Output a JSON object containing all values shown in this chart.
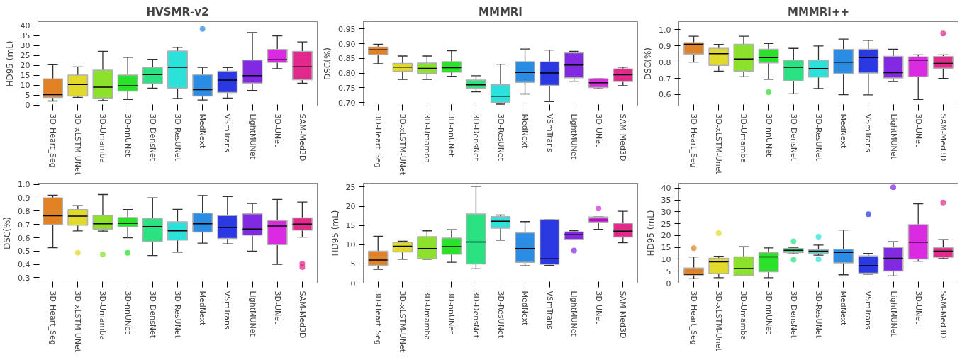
{
  "chart_data": [
    {
      "type": "box",
      "title": "HVSMR-v2",
      "ylabel": "HD95 (mL)",
      "categories": [
        "3D-Heart_Seg",
        "3D-xLSTM-UNet",
        "3D-Umamba",
        "3D-nnUNet",
        "3D-DensNet",
        "3D-ResUNet",
        "MedNext",
        "VSmTrans",
        "LightMUNet",
        "3D-UNet",
        "SAM-Med3D"
      ],
      "colors": [
        "#e07b1a",
        "#e0d81f",
        "#86e01f",
        "#1ee01e",
        "#1fe07b",
        "#1fe0d8",
        "#1f86e0",
        "#1f2ee0",
        "#7b1fe0",
        "#d81fe0",
        "#e01f86"
      ],
      "ylim": [
        -0.5,
        42
      ],
      "yticks": [
        0,
        5,
        10,
        15,
        20,
        25,
        30,
        35,
        40
      ],
      "grid": false,
      "boxes": [
        {
          "low": 2,
          "q1": 3.8,
          "median": 5.2,
          "q3": 13.2,
          "high": 20.3
        },
        {
          "low": 3.8,
          "q1": 4.5,
          "median": 10.3,
          "q3": 15,
          "high": 19.2
        },
        {
          "low": 2.2,
          "q1": 3.5,
          "median": 9,
          "q3": 17.5,
          "high": 27
        },
        {
          "low": 2.8,
          "q1": 7,
          "median": 9.7,
          "q3": 15,
          "high": 24
        },
        {
          "low": 8.5,
          "q1": 10.8,
          "median": 15.3,
          "q3": 18.8,
          "high": 23
        },
        {
          "low": 3.3,
          "q1": 8.5,
          "median": 19,
          "q3": 27.2,
          "high": 29
        },
        {
          "low": 2.5,
          "q1": 4.5,
          "median": 7.7,
          "q3": 15.2,
          "high": 18.9,
          "outliers": [
            38.3
          ]
        },
        {
          "low": 3.5,
          "q1": 6.3,
          "median": 12.5,
          "q3": 17,
          "high": 18.8
        },
        {
          "low": 7.3,
          "q1": 11,
          "median": 14.8,
          "q3": 22.6,
          "high": 36.5
        },
        {
          "low": 18.3,
          "q1": 21.5,
          "median": 22.8,
          "q3": 28,
          "high": 34.8
        },
        {
          "low": 11,
          "q1": 12.7,
          "median": 19.2,
          "q3": 27,
          "high": 31.8
        }
      ]
    },
    {
      "type": "box",
      "title": "MMMRI",
      "ylabel": "DSC(%)",
      "categories": [
        "3D-Heart_Seg",
        "3D-xLSTM-UNet",
        "3D-Umamba",
        "3D-nnUNet",
        "3D-DensNet",
        "3D-ResUNet",
        "MedNext",
        "VSmTrans",
        "LightMUNet",
        "3D-UNet",
        "SAM-Med3D"
      ],
      "colors": [
        "#e07b1a",
        "#e0d81f",
        "#86e01f",
        "#1ee01e",
        "#1fe07b",
        "#1fe0d8",
        "#1f86e0",
        "#1f2ee0",
        "#7b1fe0",
        "#d81fe0",
        "#e01f86"
      ],
      "ylim": [
        0.688,
        0.975
      ],
      "yticks": [
        {
          "value": 0.7,
          "label": "0.70"
        },
        {
          "value": 0.75,
          "label": "0.75"
        },
        {
          "value": 0.8,
          "label": "0.80"
        },
        {
          "value": 0.85,
          "label": "0.85"
        },
        {
          "value": 0.9,
          "label": "0.90"
        },
        {
          "value": 0.95,
          "label": "0.95"
        }
      ],
      "grid": false,
      "boxes": [
        {
          "low": 0.832,
          "q1": 0.863,
          "median": 0.879,
          "q3": 0.888,
          "high": 0.898
        },
        {
          "low": 0.778,
          "q1": 0.806,
          "median": 0.82,
          "q3": 0.833,
          "high": 0.858
        },
        {
          "low": 0.778,
          "q1": 0.799,
          "median": 0.816,
          "q3": 0.834,
          "high": 0.858
        },
        {
          "low": 0.789,
          "q1": 0.803,
          "median": 0.818,
          "q3": 0.839,
          "high": 0.876
        },
        {
          "low": 0.736,
          "q1": 0.748,
          "median": 0.76,
          "q3": 0.776,
          "high": 0.791
        },
        {
          "low": 0.694,
          "q1": 0.7,
          "median": 0.721,
          "q3": 0.76,
          "high": 0.83
        },
        {
          "low": 0.729,
          "q1": 0.768,
          "median": 0.802,
          "q3": 0.839,
          "high": 0.882
        },
        {
          "low": 0.703,
          "q1": 0.758,
          "median": 0.8,
          "q3": 0.838,
          "high": 0.878
        },
        {
          "low": 0.772,
          "q1": 0.784,
          "median": 0.827,
          "q3": 0.869,
          "high": 0.874
        },
        {
          "low": 0.747,
          "q1": 0.751,
          "median": 0.767,
          "q3": 0.781,
          "high": 0.781
        },
        {
          "low": 0.757,
          "q1": 0.771,
          "median": 0.794,
          "q3": 0.814,
          "high": 0.82
        }
      ]
    },
    {
      "type": "box",
      "title": "MMMRI++",
      "ylabel": "DSC(%)",
      "categories": [
        "3D-Heart_Seg",
        "3D-xLSTM-Unet",
        "3D-Umamba",
        "3D-nnUNet",
        "3D-DensNet",
        "3D-ResUNet",
        "MedNext",
        "VSmTrans",
        "LightMUNet",
        "3D-UNet",
        "SAM-Med3D"
      ],
      "colors": [
        "#e07b1a",
        "#e0d81f",
        "#86e01f",
        "#1ee01e",
        "#1fe07b",
        "#1fe0d8",
        "#1f86e0",
        "#1f2ee0",
        "#7b1fe0",
        "#d81fe0",
        "#e01f86"
      ],
      "ylim": [
        0.53,
        1.05
      ],
      "yticks": [
        0.6,
        0.7,
        0.8,
        0.9,
        {
          "value": 1,
          "label": "1.0"
        }
      ],
      "grid": false,
      "boxes": [
        {
          "low": 0.8,
          "q1": 0.85,
          "median": 0.91,
          "q3": 0.92,
          "high": 0.96
        },
        {
          "low": 0.745,
          "q1": 0.78,
          "median": 0.852,
          "q3": 0.885,
          "high": 0.91
        },
        {
          "low": 0.71,
          "q1": 0.745,
          "median": 0.82,
          "q3": 0.91,
          "high": 0.96
        },
        {
          "low": 0.695,
          "q1": 0.795,
          "median": 0.828,
          "q3": 0.88,
          "high": 0.915,
          "outliers": [
            0.615
          ]
        },
        {
          "low": 0.605,
          "q1": 0.685,
          "median": 0.768,
          "q3": 0.812,
          "high": 0.885
        },
        {
          "low": 0.638,
          "q1": 0.708,
          "median": 0.76,
          "q3": 0.812,
          "high": 0.9
        },
        {
          "low": 0.6,
          "q1": 0.73,
          "median": 0.8,
          "q3": 0.878,
          "high": 0.942
        },
        {
          "low": 0.598,
          "q1": 0.733,
          "median": 0.828,
          "q3": 0.88,
          "high": 0.935
        },
        {
          "low": 0.68,
          "q1": 0.703,
          "median": 0.735,
          "q3": 0.836,
          "high": 0.88
        },
        {
          "low": 0.57,
          "q1": 0.71,
          "median": 0.813,
          "q3": 0.833,
          "high": 0.845
        },
        {
          "low": 0.7,
          "q1": 0.763,
          "median": 0.792,
          "q3": 0.835,
          "high": 0.845,
          "outliers": [
            0.977
          ]
        }
      ]
    },
    {
      "type": "box",
      "ylabel": "DSC(%)",
      "categories": [
        "3D-Heart_Seg",
        "3D-xLSTM-UNet",
        "3D-Umamba",
        "3D-nnUNet",
        "3D-DensNet",
        "3D-ResUNet",
        "MedNext",
        "VSmTrans",
        "LightMUNet",
        "3D-UNet",
        "SAM-Med3D"
      ],
      "colors": [
        "#e07b1a",
        "#e0d81f",
        "#86e01f",
        "#1ee01e",
        "#1fe07b",
        "#1fe0d8",
        "#1f86e0",
        "#1f2ee0",
        "#7b1fe0",
        "#d81fe0",
        "#e01f86"
      ],
      "ylim": [
        0.26,
        1.01
      ],
      "yticks": [
        0.3,
        0.4,
        0.5,
        0.6,
        0.7,
        0.8,
        0.9,
        {
          "value": 1,
          "label": "1.0"
        }
      ],
      "grid": false,
      "boxes": [
        {
          "low": 0.525,
          "q1": 0.7,
          "median": 0.765,
          "q3": 0.9,
          "high": 0.92
        },
        {
          "low": 0.652,
          "q1": 0.695,
          "median": 0.762,
          "q3": 0.812,
          "high": 0.842,
          "outliers": [
            0.487
          ]
        },
        {
          "low": 0.65,
          "q1": 0.665,
          "median": 0.705,
          "q3": 0.768,
          "high": 0.925,
          "outliers": [
            0.475
          ]
        },
        {
          "low": 0.6,
          "q1": 0.683,
          "median": 0.71,
          "q3": 0.752,
          "high": 0.812,
          "outliers": [
            0.487
          ]
        },
        {
          "low": 0.467,
          "q1": 0.573,
          "median": 0.684,
          "q3": 0.745,
          "high": 0.9
        },
        {
          "low": 0.492,
          "q1": 0.583,
          "median": 0.652,
          "q3": 0.72,
          "high": 0.814
        },
        {
          "low": 0.56,
          "q1": 0.643,
          "median": 0.705,
          "q3": 0.785,
          "high": 0.918
        },
        {
          "low": 0.555,
          "q1": 0.595,
          "median": 0.678,
          "q3": 0.767,
          "high": 0.91
        },
        {
          "low": 0.5,
          "q1": 0.62,
          "median": 0.666,
          "q3": 0.78,
          "high": 0.858
        },
        {
          "low": 0.4,
          "q1": 0.548,
          "median": 0.688,
          "q3": 0.73,
          "high": 0.888
        },
        {
          "low": 0.605,
          "q1": 0.658,
          "median": 0.703,
          "q3": 0.75,
          "high": 0.868,
          "outliers": [
            0.38,
            0.405
          ]
        }
      ]
    },
    {
      "type": "box",
      "ylabel": "HD95 (mL)",
      "categories": [
        "3D-Heart_Seg",
        "3D-xLSTM-UNet",
        "3D-Umamba",
        "3D-nnUNet",
        "3D-DensNet",
        "3D-ResUNet",
        "MedNext",
        "VSmTrans",
        "LightMUNet",
        "3D-UNet",
        "SAM-Med3D"
      ],
      "colors": [
        "#e07b1a",
        "#e0d81f",
        "#86e01f",
        "#1ee01e",
        "#1fe07b",
        "#1fe0d8",
        "#1f86e0",
        "#1f2ee0",
        "#7b1fe0",
        "#d81fe0",
        "#e01f86"
      ],
      "ylim": [
        0,
        26
      ],
      "yticks": [
        0,
        5,
        10,
        15,
        20,
        25
      ],
      "grid": false,
      "boxes": [
        {
          "low": 3.6,
          "q1": 4.6,
          "median": 6,
          "q3": 8.3,
          "high": 12.2
        },
        {
          "low": 6.2,
          "q1": 8.1,
          "median": 9.6,
          "q3": 10.6,
          "high": 10.9
        },
        {
          "low": 6.2,
          "q1": 6.3,
          "median": 9,
          "q3": 12.1,
          "high": 13.6
        },
        {
          "low": 5.4,
          "q1": 7.5,
          "median": 9.5,
          "q3": 11.7,
          "high": 13.9
        },
        {
          "low": 3.7,
          "q1": 5,
          "median": 10.7,
          "q3": 18,
          "high": 25.2
        },
        {
          "low": 11.2,
          "q1": 14.3,
          "median": 16.1,
          "q3": 17.3,
          "high": 17.7
        },
        {
          "low": 4.5,
          "q1": 5.4,
          "median": 9,
          "q3": 13.1,
          "high": 16
        },
        {
          "low": 4.6,
          "q1": 4.9,
          "median": 6.3,
          "q3": 16.5,
          "high": 16.5
        },
        {
          "low": 11.4,
          "q1": 11.4,
          "median": 12.6,
          "q3": 13.3,
          "high": 13.6,
          "outliers": [
            8.5
          ]
        },
        {
          "low": 14,
          "q1": 15.8,
          "median": 16.4,
          "q3": 17.2,
          "high": 17.2,
          "outliers": [
            19.4
          ]
        },
        {
          "low": 10.5,
          "q1": 12,
          "median": 13.5,
          "q3": 15.6,
          "high": 18.7
        }
      ]
    },
    {
      "type": "box",
      "ylabel": "HD95 (mL)",
      "categories": [
        "3D-Heart_Seg",
        "3D-xLSTM-Unet",
        "3D-Umamba",
        "3D-nnUNet",
        "3D-DensNet",
        "3D-ResUNet",
        "MedNext",
        "VSmTrans",
        "LightMUNet",
        "3D-UNet",
        "SAM-Med3D"
      ],
      "colors": [
        "#e07b1a",
        "#e0d81f",
        "#86e01f",
        "#1ee01e",
        "#1fe07b",
        "#1fe0d8",
        "#1f86e0",
        "#1f2ee0",
        "#7b1fe0",
        "#d81fe0",
        "#e01f86"
      ],
      "ylim": [
        0,
        42
      ],
      "yticks": [
        0,
        5,
        10,
        15,
        20,
        25,
        30,
        35,
        40
      ],
      "grid": false,
      "boxes": [
        {
          "low": 1.8,
          "q1": 3.4,
          "median": 3.7,
          "q3": 6.3,
          "high": 11,
          "outliers": [
            14.7
          ]
        },
        {
          "low": 2.3,
          "q1": 4,
          "median": 8.9,
          "q3": 10.4,
          "high": 11.3,
          "outliers": [
            21
          ]
        },
        {
          "low": 3,
          "q1": 3.3,
          "median": 6.1,
          "q3": 11,
          "high": 15.3
        },
        {
          "low": 2.3,
          "q1": 4.8,
          "median": 11,
          "q3": 12.8,
          "high": 14.8
        },
        {
          "low": 12.3,
          "q1": 12.8,
          "median": 13.8,
          "q3": 14.5,
          "high": 14.8,
          "outliers": [
            17.6,
            9.8
          ]
        },
        {
          "low": 11.7,
          "q1": 12.5,
          "median": 13.4,
          "q3": 14,
          "high": 16,
          "outliers": [
            19.5,
            10
          ]
        },
        {
          "low": 3.5,
          "q1": 8.5,
          "median": 12.9,
          "q3": 14.2,
          "high": 22.3
        },
        {
          "low": 3.8,
          "q1": 4.2,
          "median": 7.3,
          "q3": 11.4,
          "high": 12.5,
          "outliers": [
            29
          ]
        },
        {
          "low": 3,
          "q1": 5.1,
          "median": 10.4,
          "q3": 15,
          "high": 17.4,
          "outliers": [
            40.3
          ]
        },
        {
          "low": 9.2,
          "q1": 10.1,
          "median": 17.2,
          "q3": 24.6,
          "high": 33.3
        },
        {
          "low": 10.3,
          "q1": 10.9,
          "median": 13.4,
          "q3": 14.9,
          "high": 18.3,
          "outliers": [
            33.9
          ]
        }
      ]
    }
  ]
}
